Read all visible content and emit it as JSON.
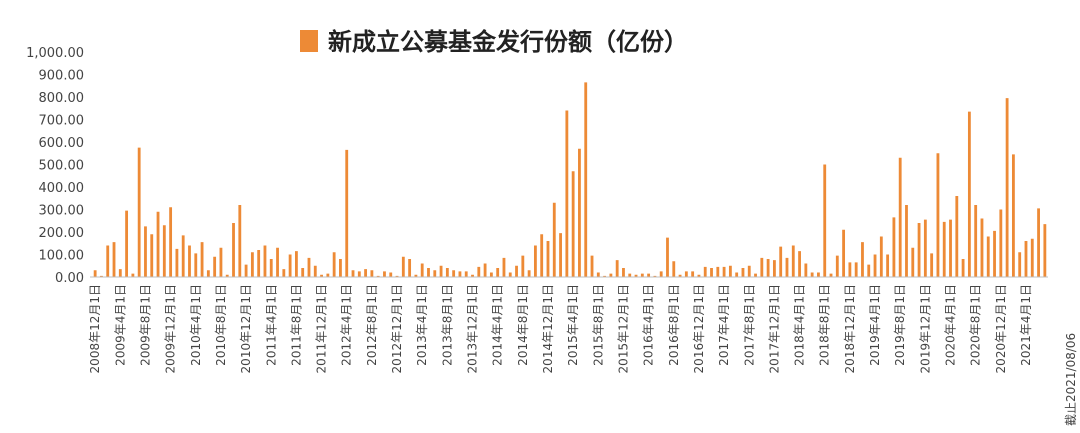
{
  "chart_data": {
    "type": "bar",
    "title": "新成立公募基金发行份额（亿份）",
    "legend": [
      {
        "name": "新成立公募基金发行份额（亿份）",
        "color": "#ED8A36"
      }
    ],
    "legend_position": "top",
    "xlabel": "",
    "ylabel": "",
    "ylim": [
      0,
      1000
    ],
    "grid": false,
    "bar_color": "#ED8A36",
    "yticks": [
      "0.00",
      "100.00",
      "200.00",
      "300.00",
      "400.00",
      "500.00",
      "600.00",
      "700.00",
      "800.00",
      "900.00",
      "1,000.00"
    ],
    "xtick_labels": [
      "2008年12月1日",
      "2009年4月1日",
      "2009年8月1日",
      "2009年12月1日",
      "2010年4月1日",
      "2010年8月1日",
      "2010年12月1日",
      "2011年4月1日",
      "2011年8月1日",
      "2011年12月1日",
      "2012年4月1日",
      "2012年8月1日",
      "2012年12月1日",
      "2013年4月1日",
      "2013年8月1日",
      "2013年12月1日",
      "2014年4月1日",
      "2014年8月1日",
      "2014年12月1日",
      "2015年4月1日",
      "2015年8月1日",
      "2015年12月1日",
      "2016年4月1日",
      "2016年8月1日",
      "2016年12月1日",
      "2017年4月1日",
      "2017年8月1日",
      "2017年12月1日",
      "2018年4月1日",
      "2018年8月1日",
      "2018年12月1日",
      "2019年4月1日",
      "2019年8月1日",
      "2019年12月1日",
      "2020年4月1日",
      "2020年8月1日",
      "2020年12月1日",
      "2021年4月1日"
    ],
    "end_note": "截止2021/08/06",
    "values": [
      30,
      5,
      140,
      155,
      35,
      295,
      15,
      575,
      225,
      190,
      290,
      230,
      310,
      125,
      185,
      140,
      105,
      155,
      30,
      90,
      130,
      10,
      240,
      320,
      55,
      110,
      120,
      140,
      80,
      130,
      35,
      100,
      115,
      40,
      85,
      50,
      10,
      15,
      110,
      80,
      565,
      30,
      25,
      35,
      30,
      5,
      25,
      20,
      5,
      90,
      80,
      10,
      60,
      40,
      30,
      50,
      40,
      30,
      25,
      25,
      10,
      45,
      60,
      20,
      40,
      85,
      20,
      50,
      95,
      30,
      140,
      190,
      160,
      330,
      195,
      740,
      470,
      570,
      865,
      95,
      20,
      5,
      15,
      75,
      40,
      15,
      10,
      15,
      15,
      5,
      25,
      175,
      70,
      10,
      25,
      25,
      10,
      45,
      40,
      45,
      45,
      50,
      20,
      40,
      50,
      15,
      85,
      80,
      75,
      135,
      85,
      140,
      115,
      60,
      20,
      20,
      500,
      15,
      95,
      210,
      65,
      65,
      155,
      55,
      100,
      180,
      100,
      265,
      530,
      320,
      130,
      240,
      255,
      105,
      550,
      245,
      255,
      360,
      80,
      735,
      320,
      260,
      180,
      205,
      300,
      795,
      545,
      110,
      160,
      170,
      305,
      235
    ]
  }
}
